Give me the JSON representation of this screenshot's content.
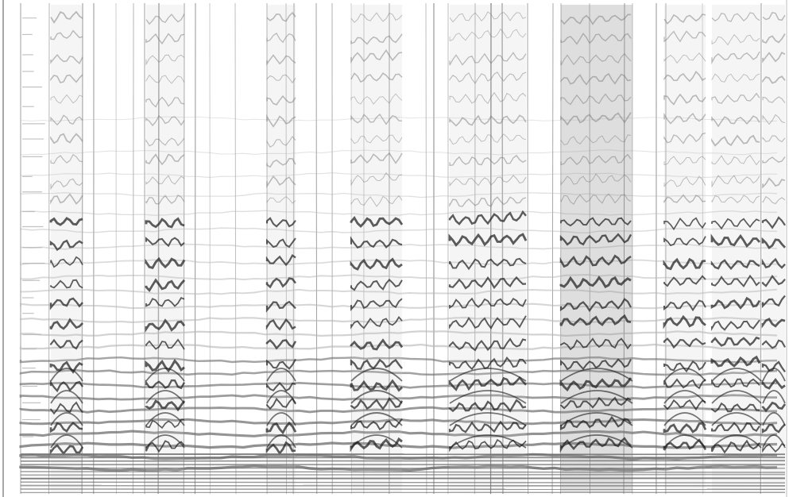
{
  "image": {
    "kind": "grayscale spectrogram",
    "background": "#ffffff",
    "ink_dark": "#1a1a1a",
    "ink_mid": "#6e6e6e",
    "ink_light": "#b4b4b4",
    "line_color": "#9a9a9a",
    "segment_count": 9,
    "vertical_dividers": 36,
    "harmonic_bands": 24
  }
}
